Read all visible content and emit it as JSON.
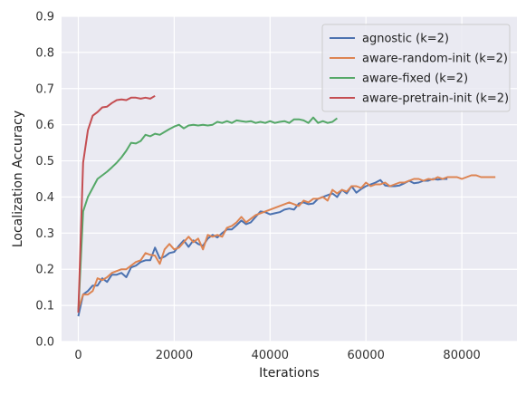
{
  "chart_data": {
    "type": "line",
    "xlabel": "Iterations",
    "ylabel": "Localization Accuracy",
    "xlim": [
      -3500,
      91500
    ],
    "ylim": [
      0.0,
      0.9
    ],
    "xticks": [
      0,
      20000,
      40000,
      60000,
      80000
    ],
    "yticks": [
      0.0,
      0.1,
      0.2,
      0.3,
      0.4,
      0.5,
      0.6,
      0.7,
      0.8,
      0.9
    ],
    "grid": true,
    "background": "#eaeaf2",
    "legend_position": "top-right",
    "series": [
      {
        "name": "agnostic (k=2)",
        "color": "#4c72b0",
        "x": [
          0,
          1000,
          2000,
          3000,
          4000,
          5000,
          6000,
          7000,
          8000,
          9000,
          10000,
          11000,
          12000,
          13000,
          14000,
          15000,
          16000,
          17000,
          18000,
          19000,
          20000,
          21000,
          22000,
          23000,
          24000,
          25000,
          26000,
          27000,
          28000,
          29000,
          30000,
          31000,
          32000,
          33000,
          34000,
          35000,
          36000,
          37000,
          38000,
          39000,
          40000,
          41000,
          42000,
          43000,
          44000,
          45000,
          46000,
          47000,
          48000,
          49000,
          50000,
          51000,
          52000,
          53000,
          54000,
          55000,
          56000,
          57000,
          58000,
          59000,
          60000,
          61000,
          62000,
          63000,
          64000,
          65000,
          66000,
          67000,
          68000,
          69000,
          70000,
          71000,
          72000,
          73000,
          74000,
          75000,
          76000,
          77000
        ],
        "y": [
          0.07,
          0.13,
          0.14,
          0.155,
          0.155,
          0.175,
          0.165,
          0.185,
          0.185,
          0.19,
          0.178,
          0.205,
          0.21,
          0.22,
          0.225,
          0.225,
          0.26,
          0.23,
          0.235,
          0.245,
          0.248,
          0.265,
          0.28,
          0.262,
          0.28,
          0.27,
          0.265,
          0.285,
          0.295,
          0.288,
          0.3,
          0.31,
          0.31,
          0.322,
          0.335,
          0.325,
          0.33,
          0.345,
          0.36,
          0.358,
          0.352,
          0.355,
          0.358,
          0.365,
          0.368,
          0.365,
          0.382,
          0.385,
          0.38,
          0.382,
          0.395,
          0.4,
          0.405,
          0.41,
          0.4,
          0.42,
          0.41,
          0.43,
          0.412,
          0.422,
          0.43,
          0.435,
          0.44,
          0.447,
          0.432,
          0.43,
          0.43,
          0.432,
          0.438,
          0.445,
          0.438,
          0.44,
          0.445,
          0.445,
          0.45,
          0.448,
          0.45,
          0.45
        ]
      },
      {
        "name": "aware-random-init (k=2)",
        "color": "#dd8452",
        "x": [
          0,
          1000,
          2000,
          3000,
          4000,
          5000,
          6000,
          7000,
          8000,
          9000,
          10000,
          11000,
          12000,
          13000,
          14000,
          15000,
          16000,
          17000,
          18000,
          19000,
          20000,
          21000,
          22000,
          23000,
          24000,
          25000,
          26000,
          27000,
          28000,
          29000,
          30000,
          31000,
          32000,
          33000,
          34000,
          35000,
          36000,
          37000,
          38000,
          39000,
          40000,
          41000,
          42000,
          43000,
          44000,
          45000,
          46000,
          47000,
          48000,
          49000,
          50000,
          51000,
          52000,
          53000,
          54000,
          55000,
          56000,
          57000,
          58000,
          59000,
          60000,
          61000,
          62000,
          63000,
          64000,
          65000,
          66000,
          67000,
          68000,
          69000,
          70000,
          71000,
          72000,
          73000,
          74000,
          75000,
          76000,
          77000,
          78000,
          79000,
          80000,
          81000,
          82000,
          83000,
          84000,
          85000,
          86000,
          87000
        ],
        "y": [
          0.09,
          0.13,
          0.13,
          0.14,
          0.175,
          0.17,
          0.178,
          0.19,
          0.195,
          0.2,
          0.2,
          0.21,
          0.22,
          0.225,
          0.245,
          0.24,
          0.238,
          0.215,
          0.255,
          0.27,
          0.255,
          0.26,
          0.275,
          0.29,
          0.275,
          0.285,
          0.255,
          0.295,
          0.29,
          0.295,
          0.29,
          0.315,
          0.32,
          0.33,
          0.345,
          0.33,
          0.34,
          0.35,
          0.355,
          0.36,
          0.365,
          0.37,
          0.375,
          0.38,
          0.385,
          0.38,
          0.375,
          0.39,
          0.385,
          0.395,
          0.395,
          0.4,
          0.39,
          0.42,
          0.41,
          0.42,
          0.415,
          0.43,
          0.43,
          0.425,
          0.44,
          0.43,
          0.435,
          0.435,
          0.44,
          0.43,
          0.435,
          0.44,
          0.44,
          0.445,
          0.45,
          0.45,
          0.445,
          0.45,
          0.448,
          0.455,
          0.45,
          0.455,
          0.455,
          0.455,
          0.45,
          0.455,
          0.46,
          0.46,
          0.455,
          0.455,
          0.455,
          0.455
        ]
      },
      {
        "name": "aware-fixed (k=2)",
        "color": "#55a868",
        "x": [
          0,
          1000,
          2000,
          3000,
          4000,
          5000,
          6000,
          7000,
          8000,
          9000,
          10000,
          11000,
          12000,
          13000,
          14000,
          15000,
          16000,
          17000,
          18000,
          19000,
          20000,
          21000,
          22000,
          23000,
          24000,
          25000,
          26000,
          27000,
          28000,
          29000,
          30000,
          31000,
          32000,
          33000,
          34000,
          35000,
          36000,
          37000,
          38000,
          39000,
          40000,
          41000,
          42000,
          43000,
          44000,
          45000,
          46000,
          47000,
          48000,
          49000,
          50000,
          51000,
          52000,
          53000,
          54000
        ],
        "y": [
          0.08,
          0.36,
          0.4,
          0.425,
          0.45,
          0.46,
          0.47,
          0.482,
          0.495,
          0.51,
          0.528,
          0.55,
          0.548,
          0.555,
          0.572,
          0.568,
          0.575,
          0.572,
          0.58,
          0.588,
          0.595,
          0.6,
          0.59,
          0.598,
          0.6,
          0.598,
          0.6,
          0.598,
          0.6,
          0.608,
          0.605,
          0.61,
          0.605,
          0.612,
          0.61,
          0.608,
          0.61,
          0.605,
          0.608,
          0.605,
          0.61,
          0.605,
          0.608,
          0.61,
          0.605,
          0.615,
          0.615,
          0.612,
          0.605,
          0.62,
          0.605,
          0.61,
          0.605,
          0.608,
          0.618
        ]
      },
      {
        "name": "aware-pretrain-init (k=2)",
        "color": "#c44e52",
        "x": [
          0,
          1000,
          2000,
          3000,
          4000,
          5000,
          6000,
          7000,
          8000,
          9000,
          10000,
          11000,
          12000,
          13000,
          14000,
          15000,
          16000
        ],
        "y": [
          0.08,
          0.495,
          0.585,
          0.625,
          0.635,
          0.648,
          0.65,
          0.66,
          0.668,
          0.67,
          0.668,
          0.675,
          0.675,
          0.672,
          0.675,
          0.672,
          0.68
        ]
      }
    ]
  }
}
